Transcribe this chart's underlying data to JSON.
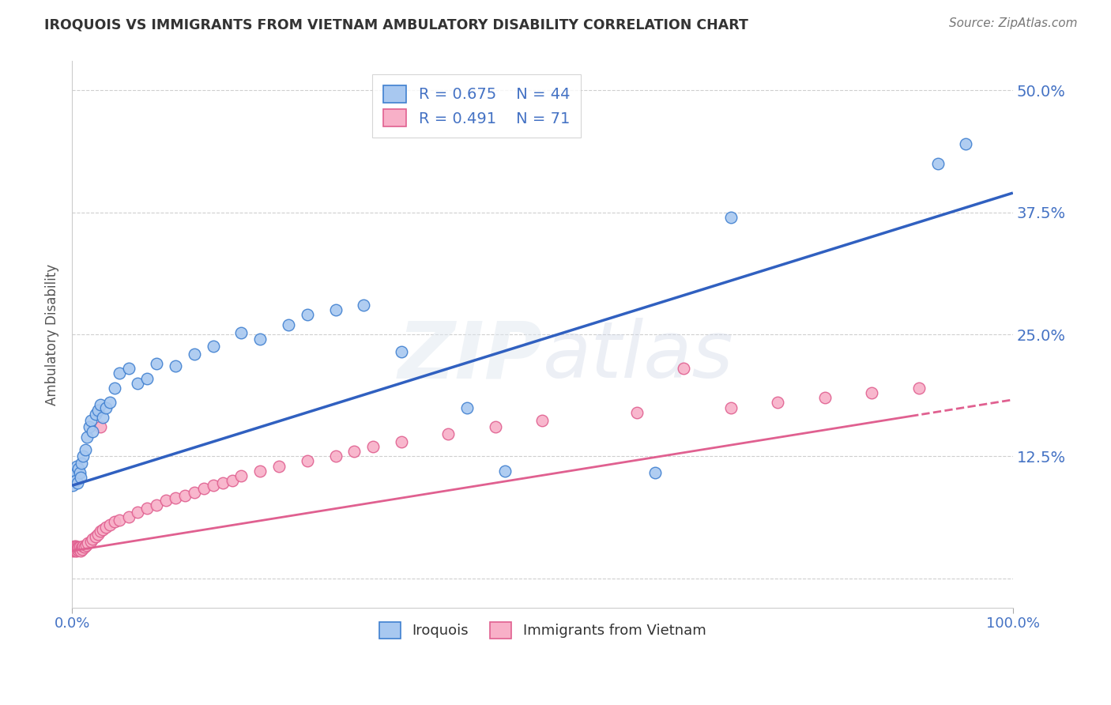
{
  "title": "IROQUOIS VS IMMIGRANTS FROM VIETNAM AMBULATORY DISABILITY CORRELATION CHART",
  "source": "Source: ZipAtlas.com",
  "ylabel": "Ambulatory Disability",
  "watermark": "ZIPatlas",
  "xlim": [
    0.0,
    1.0
  ],
  "ylim": [
    -0.03,
    0.53
  ],
  "xtick_positions": [
    0.0,
    1.0
  ],
  "xtick_labels": [
    "0.0%",
    "100.0%"
  ],
  "yticks": [
    0.0,
    0.125,
    0.25,
    0.375,
    0.5
  ],
  "ytick_labels": [
    "",
    "12.5%",
    "25.0%",
    "37.5%",
    "50.0%"
  ],
  "legend_labels": [
    "Iroquois",
    "Immigrants from Vietnam"
  ],
  "iroquois_fill_color": "#A8C8F0",
  "iroquois_edge_color": "#4080D0",
  "vietnam_fill_color": "#F8B0C8",
  "vietnam_edge_color": "#E06090",
  "iroquois_line_color": "#3060C0",
  "vietnam_line_color": "#E06090",
  "R_iroquois": 0.675,
  "N_iroquois": 44,
  "R_vietnam": 0.491,
  "N_vietnam": 71,
  "background_color": "#FFFFFF",
  "grid_color": "#BBBBBB",
  "title_color": "#333333",
  "tick_color": "#4472C4",
  "iroquois_x": [
    0.001,
    0.002,
    0.003,
    0.004,
    0.005,
    0.006,
    0.007,
    0.008,
    0.009,
    0.01,
    0.012,
    0.014,
    0.016,
    0.018,
    0.02,
    0.022,
    0.025,
    0.028,
    0.03,
    0.033,
    0.036,
    0.04,
    0.045,
    0.05,
    0.06,
    0.07,
    0.08,
    0.09,
    0.11,
    0.13,
    0.15,
    0.18,
    0.2,
    0.23,
    0.25,
    0.28,
    0.31,
    0.35,
    0.42,
    0.46,
    0.62,
    0.7,
    0.92,
    0.95
  ],
  "iroquois_y": [
    0.095,
    0.105,
    0.11,
    0.1,
    0.115,
    0.098,
    0.112,
    0.108,
    0.103,
    0.118,
    0.125,
    0.132,
    0.145,
    0.155,
    0.162,
    0.15,
    0.168,
    0.172,
    0.178,
    0.165,
    0.175,
    0.18,
    0.195,
    0.21,
    0.215,
    0.2,
    0.205,
    0.22,
    0.218,
    0.23,
    0.238,
    0.252,
    0.245,
    0.26,
    0.27,
    0.275,
    0.28,
    0.232,
    0.175,
    0.11,
    0.108,
    0.37,
    0.425,
    0.445
  ],
  "vietnam_x": [
    0.001,
    0.001,
    0.001,
    0.002,
    0.002,
    0.002,
    0.002,
    0.003,
    0.003,
    0.003,
    0.003,
    0.004,
    0.004,
    0.004,
    0.005,
    0.005,
    0.005,
    0.006,
    0.006,
    0.007,
    0.007,
    0.008,
    0.008,
    0.009,
    0.01,
    0.011,
    0.012,
    0.013,
    0.015,
    0.017,
    0.02,
    0.022,
    0.025,
    0.028,
    0.03,
    0.033,
    0.036,
    0.04,
    0.045,
    0.05,
    0.06,
    0.07,
    0.08,
    0.09,
    0.1,
    0.11,
    0.12,
    0.13,
    0.14,
    0.15,
    0.16,
    0.17,
    0.18,
    0.2,
    0.22,
    0.25,
    0.28,
    0.3,
    0.32,
    0.35,
    0.4,
    0.45,
    0.5,
    0.6,
    0.65,
    0.7,
    0.75,
    0.8,
    0.85,
    0.9,
    0.03
  ],
  "vietnam_y": [
    0.03,
    0.032,
    0.028,
    0.031,
    0.029,
    0.033,
    0.03,
    0.031,
    0.028,
    0.032,
    0.03,
    0.029,
    0.031,
    0.033,
    0.03,
    0.032,
    0.028,
    0.031,
    0.03,
    0.029,
    0.031,
    0.03,
    0.032,
    0.028,
    0.031,
    0.03,
    0.033,
    0.032,
    0.034,
    0.036,
    0.038,
    0.04,
    0.043,
    0.045,
    0.048,
    0.05,
    0.052,
    0.055,
    0.058,
    0.06,
    0.063,
    0.068,
    0.072,
    0.075,
    0.08,
    0.082,
    0.085,
    0.088,
    0.092,
    0.095,
    0.098,
    0.1,
    0.105,
    0.11,
    0.115,
    0.12,
    0.125,
    0.13,
    0.135,
    0.14,
    0.148,
    0.155,
    0.162,
    0.17,
    0.215,
    0.175,
    0.18,
    0.185,
    0.19,
    0.195,
    0.155
  ]
}
